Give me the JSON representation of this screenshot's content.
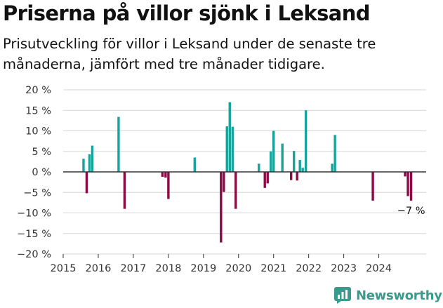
{
  "title": "Priserna på villor sjönk i Leksand",
  "subtitle": "Prisutveckling för villor i Leksand under de senaste tre månaderna, jämfört med tre månader tidigare.",
  "brand": {
    "name": "Newsworthy",
    "color": "#3a9a8c",
    "icon": "newsworthy-chart-icon"
  },
  "colors": {
    "positive": "#17a39a",
    "negative": "#8b0b45",
    "grid": "#d6d6d6",
    "zero_line": "#333333"
  },
  "chart_data": {
    "type": "bar",
    "title": "Priserna på villor sjönk i Leksand",
    "xlabel": "",
    "ylabel": "",
    "ylim": [
      -20,
      20
    ],
    "xlim": [
      2015,
      2025.35
    ],
    "y_ticks": [
      20,
      15,
      10,
      5,
      0,
      -5,
      -10,
      -15,
      -20
    ],
    "y_tick_labels": [
      "20 %",
      "15 %",
      "10 %",
      "5 %",
      "0 %",
      "−5 %",
      "−10 %",
      "−15 %",
      "−20 %"
    ],
    "x_ticks": [
      2015,
      2016,
      2017,
      2018,
      2019,
      2020,
      2021,
      2022,
      2023,
      2024
    ],
    "x_tick_labels": [
      "2015",
      "2016",
      "2017",
      "2018",
      "2019",
      "2020",
      "2021",
      "2022",
      "2023",
      "2024"
    ],
    "series": [
      {
        "name": "Prisutveckling (%)",
        "points": [
          {
            "x": 2015.58,
            "y": 3.2
          },
          {
            "x": 2015.67,
            "y": -5.2
          },
          {
            "x": 2015.75,
            "y": 4.3
          },
          {
            "x": 2015.83,
            "y": 6.4
          },
          {
            "x": 2016.58,
            "y": 13.4
          },
          {
            "x": 2016.75,
            "y": -9.0
          },
          {
            "x": 2017.83,
            "y": -1.2
          },
          {
            "x": 2017.92,
            "y": -1.4
          },
          {
            "x": 2018.0,
            "y": -6.6
          },
          {
            "x": 2018.75,
            "y": 3.5
          },
          {
            "x": 2019.5,
            "y": -17.2
          },
          {
            "x": 2019.58,
            "y": -4.9
          },
          {
            "x": 2019.67,
            "y": 11.1
          },
          {
            "x": 2019.75,
            "y": 17.0
          },
          {
            "x": 2019.83,
            "y": 11.0
          },
          {
            "x": 2019.92,
            "y": -9.0
          },
          {
            "x": 2020.58,
            "y": 2.0
          },
          {
            "x": 2020.75,
            "y": -3.9
          },
          {
            "x": 2020.83,
            "y": -2.8
          },
          {
            "x": 2020.92,
            "y": 5.0
          },
          {
            "x": 2021.0,
            "y": 10.0
          },
          {
            "x": 2021.25,
            "y": 6.9
          },
          {
            "x": 2021.5,
            "y": -2.0
          },
          {
            "x": 2021.58,
            "y": 5.1
          },
          {
            "x": 2021.67,
            "y": -2.1
          },
          {
            "x": 2021.75,
            "y": 2.9
          },
          {
            "x": 2021.83,
            "y": 1.0
          },
          {
            "x": 2021.92,
            "y": 15.0
          },
          {
            "x": 2022.67,
            "y": 2.0
          },
          {
            "x": 2022.75,
            "y": 9.0
          },
          {
            "x": 2023.83,
            "y": -7.0
          },
          {
            "x": 2024.75,
            "y": -1.1
          },
          {
            "x": 2024.83,
            "y": -5.9
          },
          {
            "x": 2024.92,
            "y": -7.0
          }
        ]
      }
    ],
    "annotations": [
      {
        "x": 2024.92,
        "y": -7.0,
        "text": "−7 %"
      }
    ],
    "grid": true,
    "legend": "none"
  }
}
